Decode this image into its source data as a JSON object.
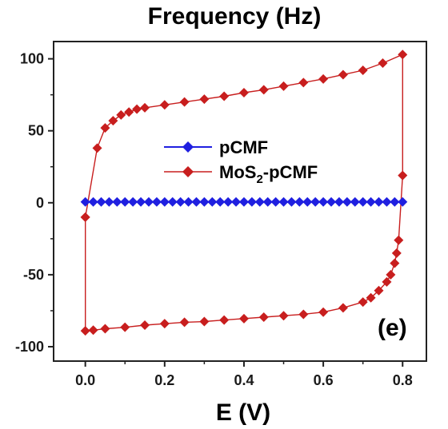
{
  "chart_data": {
    "type": "line",
    "title": "Frequency (Hz)",
    "xlabel": "E (V)",
    "ylabel": "",
    "panel_label": "(e)",
    "xlim": [
      -0.08,
      0.86
    ],
    "ylim": [
      -110,
      112
    ],
    "xticks": [
      0.0,
      0.2,
      0.4,
      0.6,
      0.8
    ],
    "xtick_labels": [
      "0.0",
      "0.2",
      "0.4",
      "0.6",
      "0.8"
    ],
    "yticks": [
      -100,
      -50,
      0,
      50,
      100
    ],
    "ytick_labels": [
      "-100",
      "-50",
      "0",
      "50",
      "100"
    ],
    "grid": false,
    "legend_position": "center-left",
    "series": [
      {
        "name": "pCMF",
        "color": "#1f1fe0",
        "marker": "diamond",
        "x": [
          0.0,
          0.02,
          0.04,
          0.06,
          0.08,
          0.1,
          0.12,
          0.14,
          0.16,
          0.18,
          0.2,
          0.22,
          0.24,
          0.26,
          0.28,
          0.3,
          0.32,
          0.34,
          0.36,
          0.38,
          0.4,
          0.42,
          0.44,
          0.46,
          0.48,
          0.5,
          0.52,
          0.54,
          0.56,
          0.58,
          0.6,
          0.62,
          0.64,
          0.66,
          0.68,
          0.7,
          0.72,
          0.74,
          0.76,
          0.78,
          0.8
        ],
        "y": [
          0.6,
          0.6,
          0.6,
          0.6,
          0.6,
          0.6,
          0.6,
          0.6,
          0.6,
          0.6,
          0.6,
          0.6,
          0.6,
          0.6,
          0.6,
          0.6,
          0.6,
          0.6,
          0.6,
          0.6,
          0.6,
          0.6,
          0.6,
          0.6,
          0.6,
          0.6,
          0.6,
          0.6,
          0.6,
          0.6,
          0.6,
          0.6,
          0.6,
          0.6,
          0.6,
          0.6,
          0.6,
          0.6,
          0.6,
          0.6,
          0.6
        ]
      },
      {
        "name": "MoS2-pCMF",
        "name_base": "MoS",
        "name_sub": "2",
        "name_rest": "-pCMF",
        "color": "#c81e1e",
        "marker": "diamond",
        "x": [
          0.0,
          0.03,
          0.05,
          0.07,
          0.09,
          0.11,
          0.13,
          0.15,
          0.2,
          0.25,
          0.3,
          0.35,
          0.4,
          0.45,
          0.5,
          0.55,
          0.6,
          0.65,
          0.7,
          0.75,
          0.8,
          0.8,
          0.79,
          0.785,
          0.78,
          0.77,
          0.76,
          0.74,
          0.72,
          0.7,
          0.65,
          0.6,
          0.55,
          0.5,
          0.45,
          0.4,
          0.35,
          0.3,
          0.25,
          0.2,
          0.15,
          0.1,
          0.05,
          0.02,
          0.0,
          0.0
        ],
        "y": [
          -10,
          38,
          52,
          57,
          61,
          63,
          65,
          66,
          68,
          70,
          72,
          74,
          76.5,
          78.5,
          81,
          83.5,
          86,
          89,
          92,
          97,
          103,
          19,
          -26,
          -35,
          -42,
          -50,
          -55,
          -61,
          -66,
          -69,
          -73,
          -76,
          -77.5,
          -78.5,
          -79.5,
          -80.5,
          -81.5,
          -82.5,
          -83,
          -84,
          -85,
          -86.5,
          -87.5,
          -88.5,
          -89,
          -10
        ]
      }
    ]
  }
}
